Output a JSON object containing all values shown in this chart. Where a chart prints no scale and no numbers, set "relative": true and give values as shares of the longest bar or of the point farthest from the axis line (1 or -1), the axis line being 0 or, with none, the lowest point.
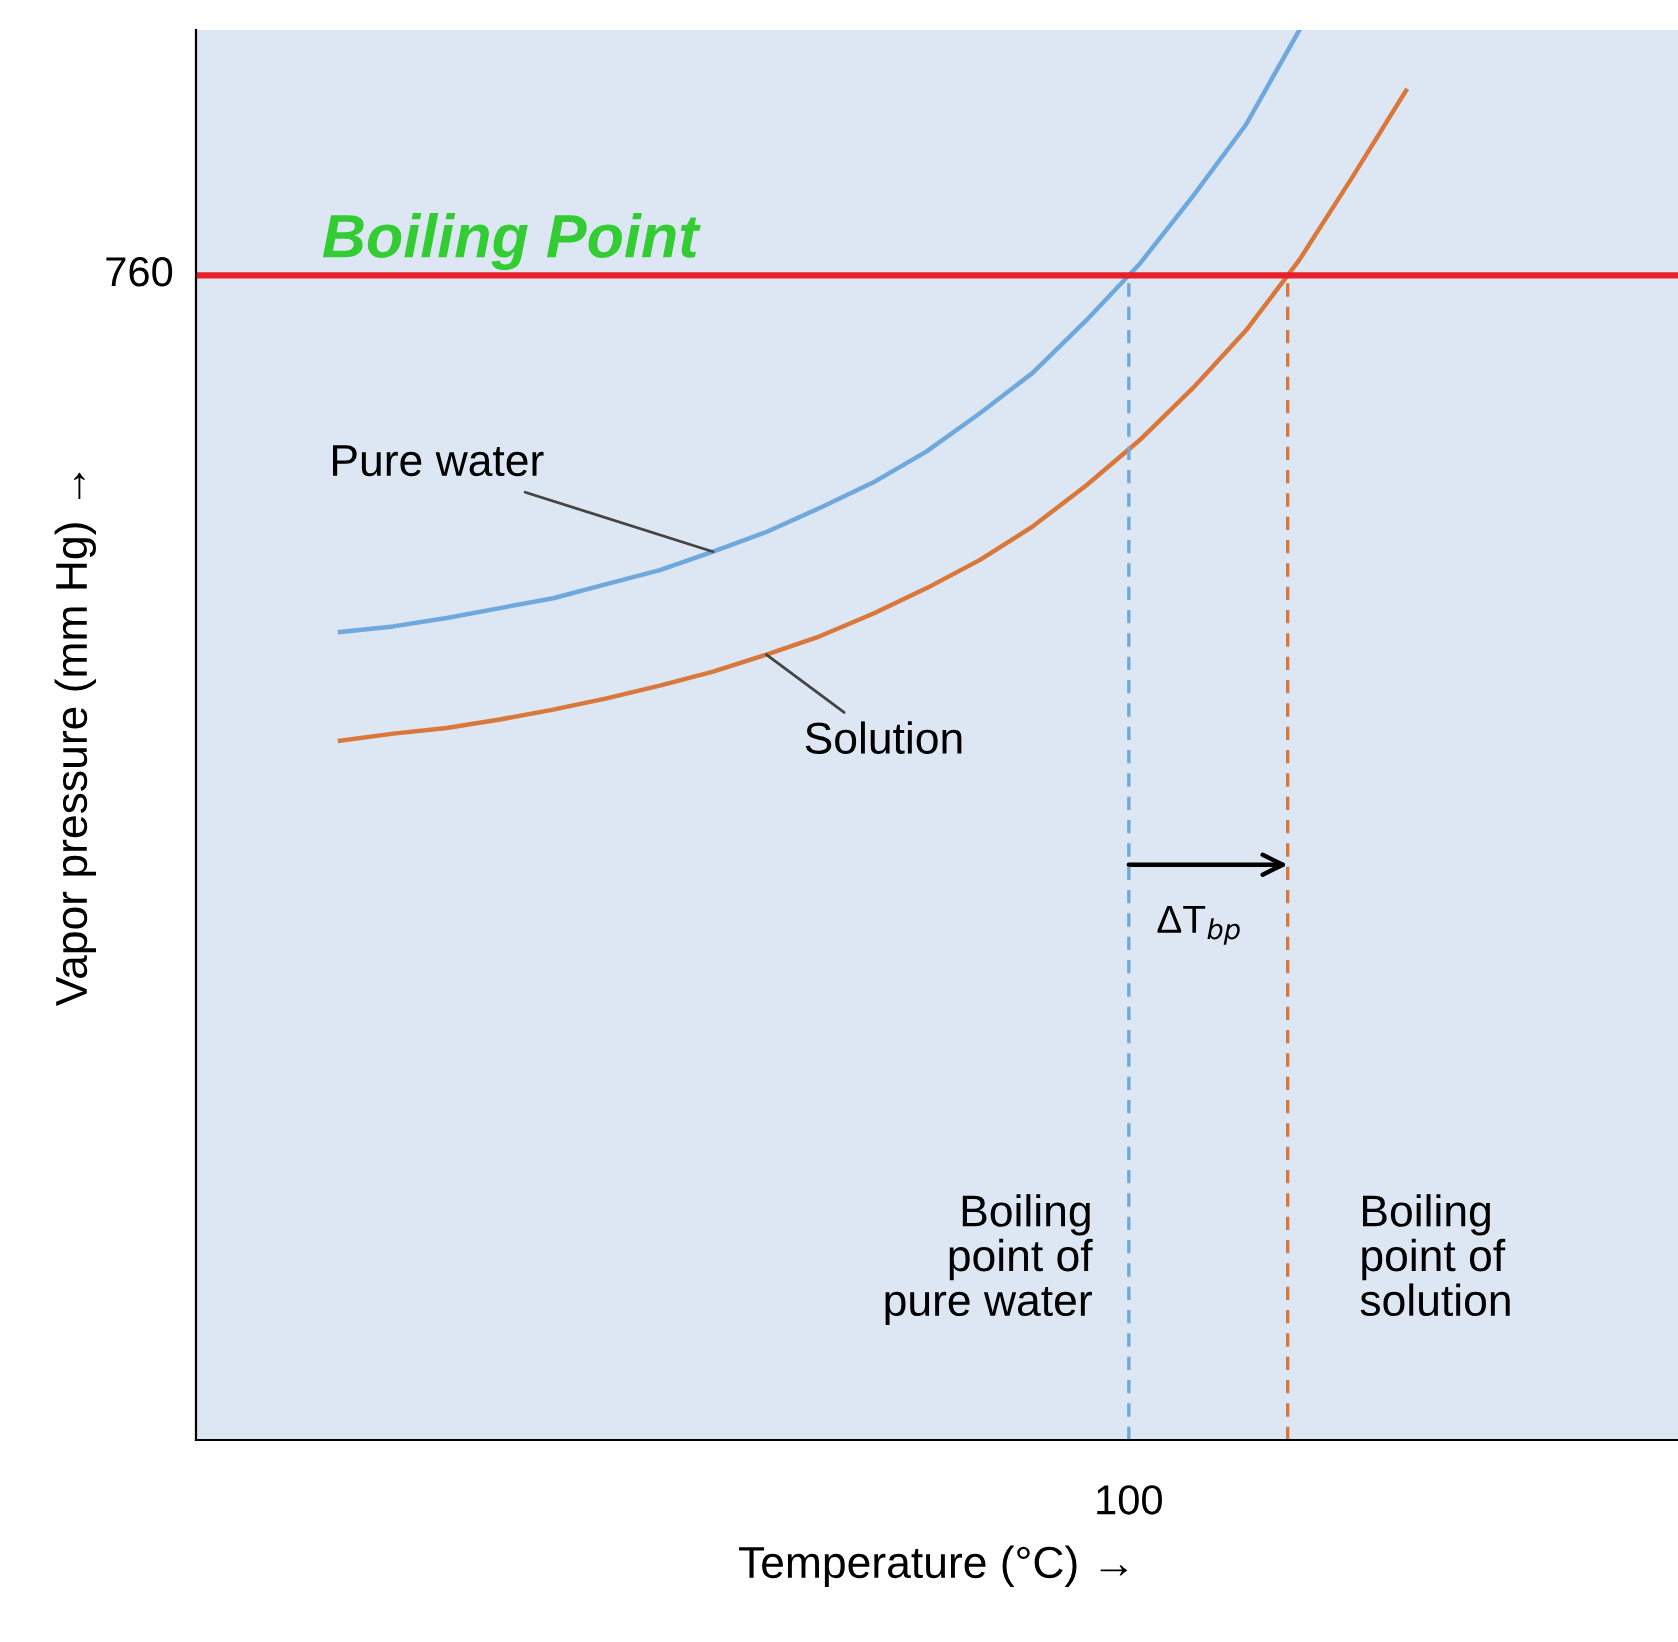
{
  "chart_data": {
    "type": "line",
    "relative": true,
    "xlabel": "Temperature (°C) →",
    "ylabel": "Vapor pressure (mm Hg) →",
    "categories": [
      null,
      null,
      null,
      null,
      null,
      null,
      null,
      null,
      null,
      null,
      null,
      null,
      null,
      null,
      null,
      null,
      null,
      null,
      null,
      null,
      null
    ],
    "series": [
      {
        "name": "Pure water",
        "color": "#6fa8dc",
        "values": [
          0.573,
          0.577,
          0.583,
          0.59,
          0.597,
          0.607,
          0.617,
          0.63,
          0.644,
          0.661,
          0.679,
          0.701,
          0.728,
          0.757,
          0.794,
          0.834,
          0.882,
          0.933,
          1.0,
          null,
          null
        ]
      },
      {
        "name": "Solution",
        "color": "#d9783a",
        "values": [
          0.496,
          0.501,
          0.505,
          0.511,
          0.518,
          0.526,
          0.535,
          0.545,
          0.557,
          0.57,
          0.586,
          0.604,
          0.624,
          0.648,
          0.677,
          0.709,
          0.746,
          0.787,
          0.837,
          0.896,
          0.957
        ]
      }
    ],
    "ref_lines": [
      {
        "axis": "y",
        "value": 0.826,
        "color": "#e8202a",
        "line_style": "solid"
      }
    ],
    "annotations": [
      "Boiling Point",
      "ΔT$_{bp}$",
      "Boiling\npoint of\npure water",
      "Boiling\npoint of\nsolution",
      "760",
      "100"
    ],
    "marker": "none",
    "line_style": "solid"
  }
}
